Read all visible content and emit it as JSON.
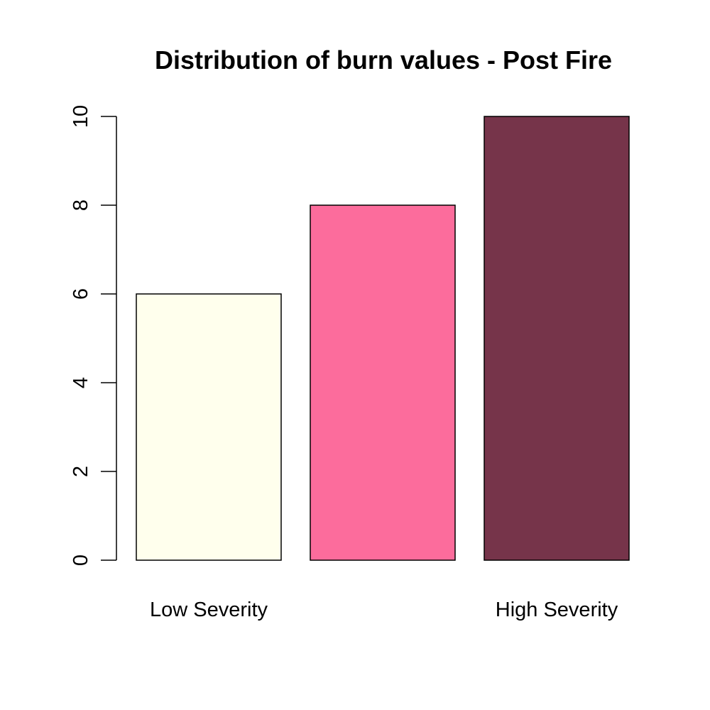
{
  "chart_data": {
    "type": "bar",
    "title": "Distribution of burn values - Post Fire",
    "xlabel": "",
    "ylabel": "",
    "categories": [
      "Low Severity",
      "",
      "High Severity"
    ],
    "values": [
      6,
      8,
      10
    ],
    "colors": [
      "#FFFFED",
      "#FC6C9C",
      "#76344A"
    ],
    "ylim": [
      0,
      10
    ],
    "yticks": [
      0,
      2,
      4,
      6,
      8,
      10
    ],
    "grid": false
  }
}
